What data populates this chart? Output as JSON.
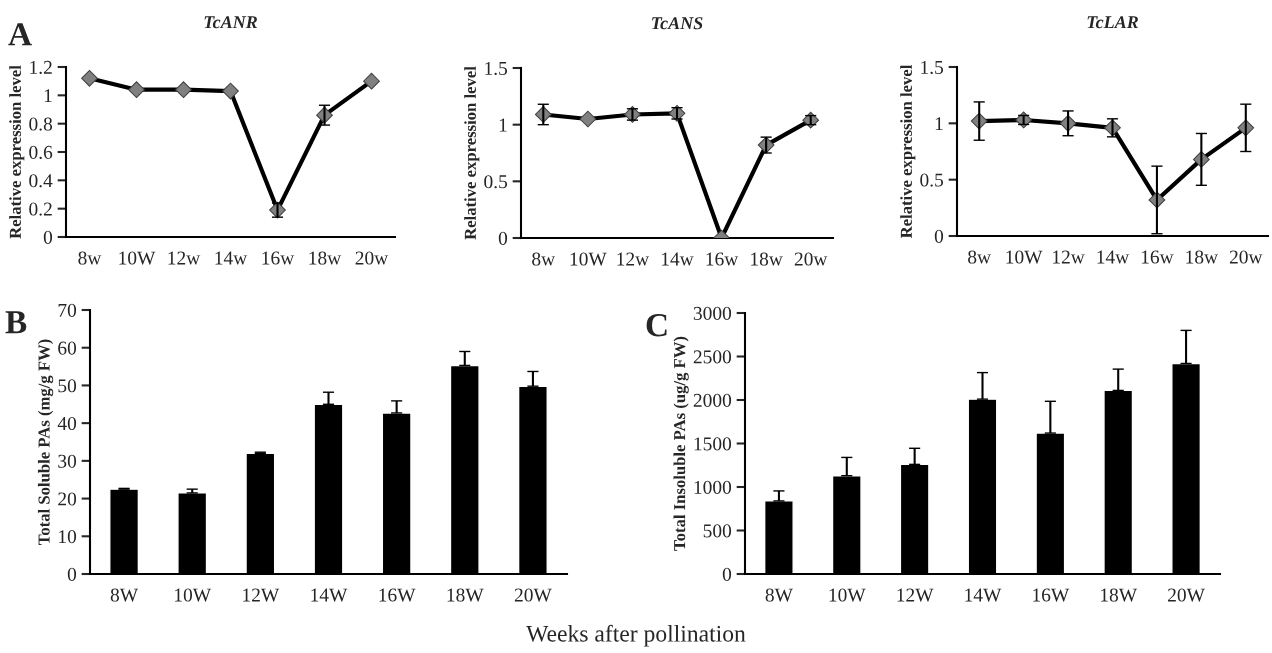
{
  "chart_data": [
    {
      "type": "line",
      "title": "TcANR",
      "ylabel": "Relative expression level",
      "annotations": [
        "A"
      ],
      "categories": [
        "8w",
        "10W",
        "12w",
        "14w",
        "16w",
        "18w",
        "20w"
      ],
      "values": [
        1.12,
        1.04,
        1.04,
        1.03,
        0.19,
        0.86,
        1.1
      ],
      "errors": [
        null,
        null,
        null,
        null,
        0.05,
        0.07,
        null
      ],
      "color": "#000000",
      "marker": "diamond",
      "ylim": [
        0,
        1.2
      ],
      "yticks": [
        0,
        0.2,
        0.4,
        0.6,
        0.8,
        1,
        1.2
      ],
      "grid": false
    },
    {
      "type": "line",
      "title": "TcANS",
      "ylabel": "Relative expression level",
      "categories": [
        "8w",
        "10W",
        "12w",
        "14w",
        "16w",
        "18w",
        "20w"
      ],
      "values": [
        1.09,
        1.05,
        1.09,
        1.1,
        0,
        0.82,
        1.04
      ],
      "errors": [
        0.09,
        null,
        0.05,
        0.05,
        null,
        0.07,
        0.04
      ],
      "color": "#000000",
      "marker": "diamond",
      "ylim": [
        0,
        1.5
      ],
      "yticks": [
        0,
        0.5,
        1,
        1.5
      ],
      "grid": false
    },
    {
      "type": "line",
      "title": "TcLAR",
      "ylabel": "Relative expression level",
      "categories": [
        "8w",
        "10W",
        "12w",
        "14w",
        "16w",
        "18w",
        "20w"
      ],
      "values": [
        1.02,
        1.03,
        1.0,
        0.96,
        0.32,
        0.68,
        0.96
      ],
      "errors": [
        0.17,
        0.04,
        0.11,
        0.08,
        0.3,
        0.23,
        0.21
      ],
      "color": "#000000",
      "marker": "diamond",
      "ylim": [
        0,
        1.5
      ],
      "yticks": [
        0,
        0.5,
        1,
        1.5
      ],
      "grid": false
    },
    {
      "type": "bar",
      "ylabel": "Total Soluble PAs (mg/g FW)",
      "annotations": [
        "B",
        "Weeks after pollination"
      ],
      "categories": [
        "8W",
        "10W",
        "12W",
        "14W",
        "16W",
        "18W",
        "20W"
      ],
      "values": [
        22.5,
        21.5,
        32,
        45,
        42.7,
        55.3,
        49.8
      ],
      "errors": [
        [
          22.5,
          22.7
        ],
        [
          21.5,
          22.5
        ],
        [
          32,
          32.3
        ],
        [
          45,
          48.2
        ],
        [
          42.7,
          45.9
        ],
        [
          55.3,
          59
        ],
        [
          49.8,
          53.7
        ]
      ],
      "color": "#000000",
      "ylim": [
        0,
        70
      ],
      "yticks": [
        0,
        10,
        20,
        30,
        40,
        50,
        60,
        70
      ],
      "grid": false
    },
    {
      "type": "bar",
      "ylabel": "Total Insoluble PAs (ug/g FW)",
      "annotations": [
        "C"
      ],
      "categories": [
        "8W",
        "10W",
        "12W",
        "14W",
        "16W",
        "18W",
        "20W"
      ],
      "values": [
        840,
        1130,
        1260,
        2010,
        1620,
        2110,
        2420
      ],
      "errors": [
        [
          840,
          955
        ],
        [
          1130,
          1340
        ],
        [
          1260,
          1445
        ],
        [
          2010,
          2315
        ],
        [
          1620,
          1985
        ],
        [
          2110,
          2355
        ],
        [
          2420,
          2800
        ]
      ],
      "color": "#000000",
      "ylim": [
        0,
        3000
      ],
      "yticks": [
        0,
        500,
        1000,
        1500,
        2000,
        2500,
        3000
      ],
      "grid": false
    }
  ]
}
